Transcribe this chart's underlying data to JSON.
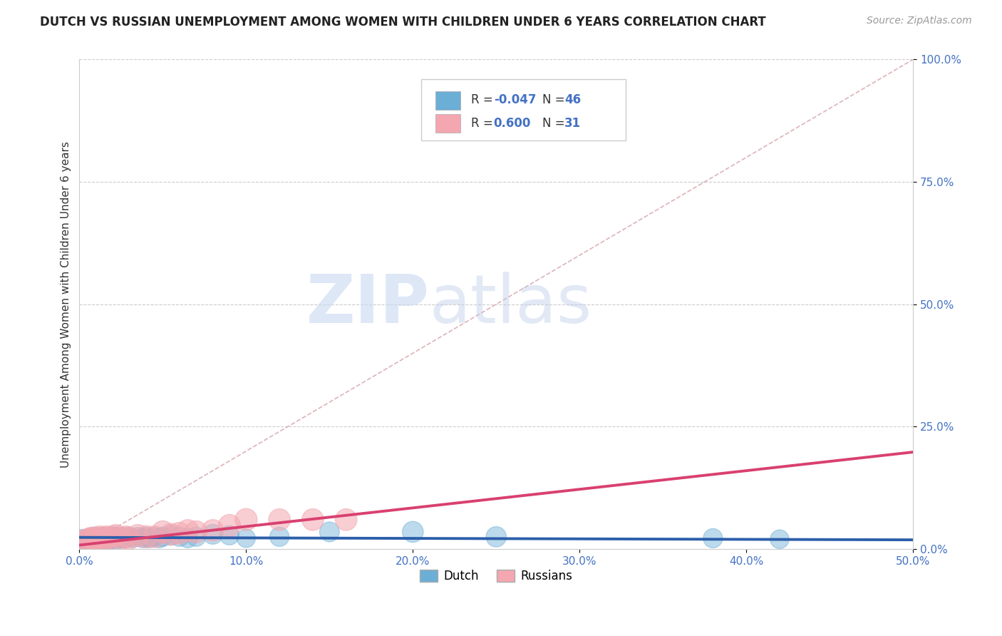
{
  "title": "DUTCH VS RUSSIAN UNEMPLOYMENT AMONG WOMEN WITH CHILDREN UNDER 6 YEARS CORRELATION CHART",
  "source": "Source: ZipAtlas.com",
  "ylabel": "Unemployment Among Women with Children Under 6 years",
  "xlim": [
    0.0,
    0.5
  ],
  "ylim": [
    0.0,
    1.0
  ],
  "xticks": [
    0.0,
    0.1,
    0.2,
    0.3,
    0.4,
    0.5
  ],
  "yticks": [
    0.0,
    0.25,
    0.5,
    0.75,
    1.0
  ],
  "xticklabels": [
    "0.0%",
    "10.0%",
    "20.0%",
    "30.0%",
    "40.0%",
    "50.0%"
  ],
  "yticklabels": [
    "0.0%",
    "25.0%",
    "50.0%",
    "75.0%",
    "100.0%"
  ],
  "dutch_color": "#6baed6",
  "russian_color": "#f4a7b0",
  "dutch_R": -0.047,
  "dutch_N": 46,
  "russian_R": 0.6,
  "russian_N": 31,
  "title_fontsize": 12,
  "axis_label_fontsize": 11,
  "tick_fontsize": 11,
  "watermark_zip": "ZIP",
  "watermark_atlas": "atlas",
  "dutch_line_color": "#2c5faa",
  "russian_line_color": "#d94070",
  "ref_line_color": "#d4a0a8",
  "tick_color": "#4472c4",
  "dutch_x": [
    0.002,
    0.004,
    0.005,
    0.006,
    0.007,
    0.008,
    0.009,
    0.01,
    0.01,
    0.012,
    0.013,
    0.014,
    0.015,
    0.016,
    0.017,
    0.018,
    0.019,
    0.02,
    0.021,
    0.022,
    0.023,
    0.025,
    0.026,
    0.028,
    0.03,
    0.032,
    0.035,
    0.038,
    0.04,
    0.042,
    0.045,
    0.048,
    0.05,
    0.055,
    0.06,
    0.065,
    0.07,
    0.08,
    0.09,
    0.1,
    0.12,
    0.15,
    0.2,
    0.25,
    0.38,
    0.42
  ],
  "dutch_y": [
    0.02,
    0.015,
    0.018,
    0.022,
    0.016,
    0.02,
    0.025,
    0.018,
    0.022,
    0.02,
    0.025,
    0.022,
    0.02,
    0.025,
    0.022,
    0.018,
    0.02,
    0.025,
    0.022,
    0.025,
    0.02,
    0.022,
    0.025,
    0.022,
    0.025,
    0.022,
    0.025,
    0.022,
    0.025,
    0.022,
    0.025,
    0.022,
    0.025,
    0.028,
    0.025,
    0.022,
    0.025,
    0.03,
    0.028,
    0.022,
    0.025,
    0.035,
    0.035,
    0.025,
    0.022,
    0.02
  ],
  "dutch_sizes": [
    400,
    350,
    380,
    360,
    370,
    380,
    390,
    400,
    350,
    380,
    360,
    370,
    380,
    350,
    360,
    370,
    380,
    390,
    370,
    360,
    370,
    380,
    360,
    370,
    380,
    350,
    360,
    370,
    380,
    370,
    360,
    370,
    380,
    400,
    380,
    370,
    380,
    400,
    380,
    350,
    380,
    400,
    450,
    420,
    380,
    360
  ],
  "russian_x": [
    0.002,
    0.004,
    0.005,
    0.007,
    0.008,
    0.009,
    0.01,
    0.012,
    0.013,
    0.015,
    0.016,
    0.018,
    0.02,
    0.022,
    0.025,
    0.028,
    0.03,
    0.035,
    0.04,
    0.045,
    0.05,
    0.055,
    0.06,
    0.065,
    0.07,
    0.08,
    0.09,
    0.1,
    0.12,
    0.14,
    0.16
  ],
  "russian_y": [
    0.015,
    0.018,
    0.02,
    0.022,
    0.02,
    0.018,
    0.022,
    0.025,
    0.02,
    0.022,
    0.025,
    0.022,
    0.025,
    0.028,
    0.022,
    0.025,
    0.022,
    0.028,
    0.025,
    0.025,
    0.035,
    0.03,
    0.032,
    0.038,
    0.035,
    0.038,
    0.048,
    0.06,
    0.06,
    0.06,
    0.06
  ],
  "russian_sizes": [
    500,
    480,
    460,
    500,
    480,
    460,
    500,
    480,
    460,
    500,
    480,
    460,
    500,
    480,
    500,
    480,
    500,
    480,
    500,
    480,
    500,
    480,
    500,
    480,
    500,
    480,
    500,
    500,
    480,
    480,
    480
  ]
}
